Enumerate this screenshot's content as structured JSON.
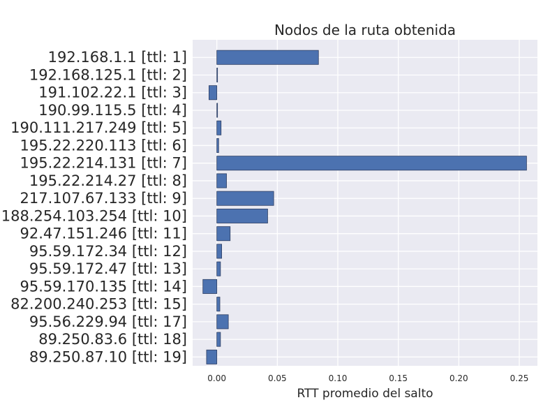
{
  "chart_data": {
    "type": "bar",
    "orientation": "horizontal",
    "title": "Nodos de la ruta obtenida",
    "xlabel": "RTT promedio del salto",
    "ylabel": "",
    "xlim": [
      -0.02,
      0.265
    ],
    "xticks": [
      0.0,
      0.05,
      0.1,
      0.15,
      0.2,
      0.25
    ],
    "xtick_labels": [
      "0.00",
      "0.05",
      "0.10",
      "0.15",
      "0.20",
      "0.25"
    ],
    "grid": true,
    "legend": "none",
    "bar_color": "#4c72b0",
    "background_color": "#eaeaf2",
    "categories": [
      "192.168.1.1 [ttl: 1]",
      "192.168.125.1 [ttl: 2]",
      "191.102.22.1 [ttl: 3]",
      "190.99.115.5 [ttl: 4]",
      "190.111.217.249 [ttl: 5]",
      "195.22.220.113 [ttl: 6]",
      "195.22.214.131 [ttl: 7]",
      "195.22.214.27 [ttl: 8]",
      "217.107.67.133 [ttl: 9]",
      "188.254.103.254 [ttl: 10]",
      "92.47.151.246 [ttl: 11]",
      "95.59.172.34 [ttl: 12]",
      "95.59.172.47 [ttl: 13]",
      "95.59.170.135 [ttl: 14]",
      "82.200.240.253 [ttl: 15]",
      "95.56.229.94 [ttl: 17]",
      "89.250.83.6 [ttl: 18]",
      "89.250.87.10 [ttl: 19]"
    ],
    "values": [
      0.084,
      0.0005,
      -0.0065,
      0.0005,
      0.0035,
      0.0015,
      0.256,
      0.008,
      0.047,
      0.042,
      0.011,
      0.004,
      0.003,
      -0.0115,
      0.0025,
      0.0095,
      0.003,
      -0.0085
    ]
  }
}
